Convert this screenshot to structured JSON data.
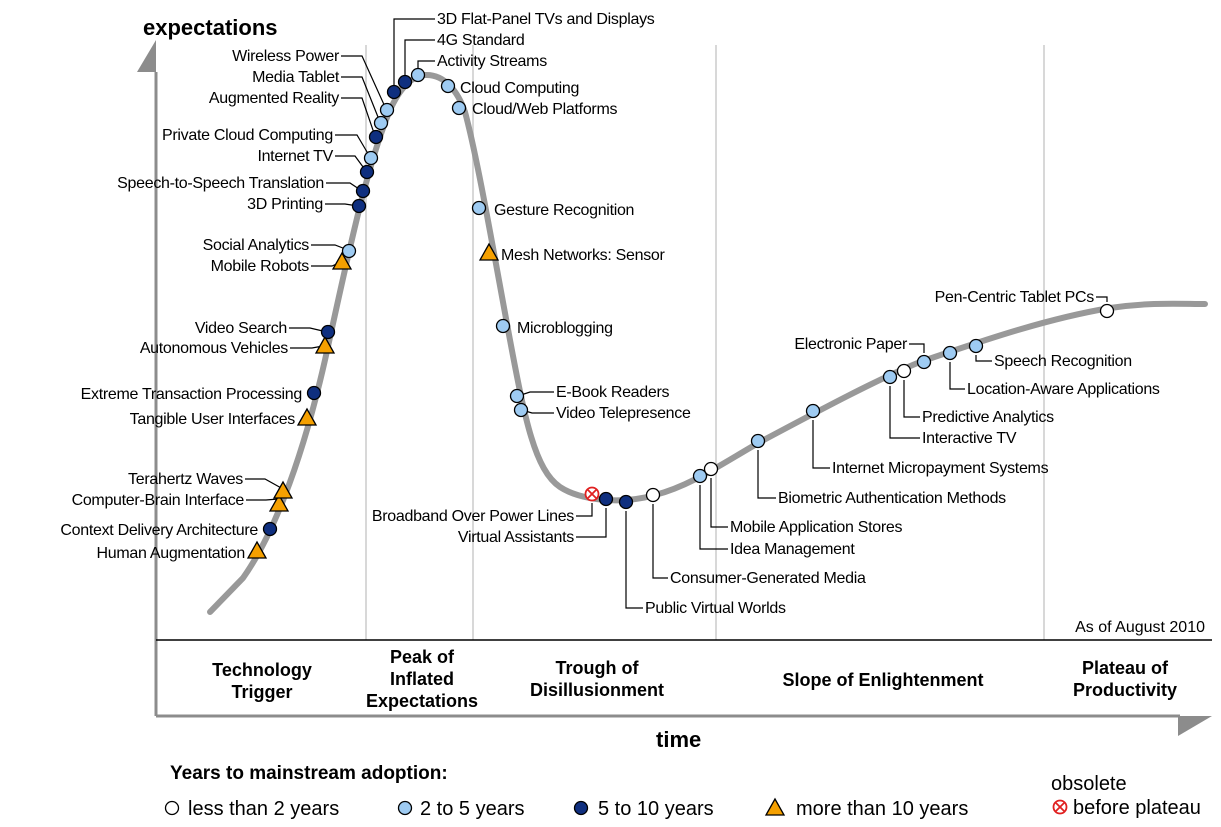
{
  "chart_data": {
    "type": "hype-cycle",
    "ylabel": "expectations",
    "xlabel": "time",
    "as_of": "As of August 2010",
    "colors": {
      "lt2": "#ffffff",
      "2to5": "#9ecbf2",
      "5to10": "#0f2f7f",
      "gt10": "#f5a000",
      "obsolete": "#e02020",
      "curve": "#999999"
    },
    "phases": [
      {
        "lines": [
          "Technology",
          "Trigger"
        ]
      },
      {
        "lines": [
          "Peak of",
          "Inflated",
          "Expectations"
        ]
      },
      {
        "lines": [
          "Trough of",
          "Disillusionment"
        ]
      },
      {
        "lines": [
          "Slope of Enlightenment"
        ]
      },
      {
        "lines": [
          "Plateau of",
          "Productivity"
        ]
      }
    ],
    "legend": {
      "title": "Years to mainstream adoption:",
      "items": [
        {
          "cat": "lt2",
          "label": "less than 2 years"
        },
        {
          "cat": "2to5",
          "label": "2 to 5 years"
        },
        {
          "cat": "5to10",
          "label": "5 to 10 years"
        },
        {
          "cat": "gt10",
          "label": "more than 10 years"
        },
        {
          "cat": "obsolete",
          "label_lines": [
            "obsolete",
            "before plateau"
          ]
        }
      ]
    },
    "technologies": [
      {
        "name": "Human Augmentation",
        "cat": "gt10"
      },
      {
        "name": "Context Delivery Architecture",
        "cat": "5to10"
      },
      {
        "name": "Computer-Brain Interface",
        "cat": "gt10"
      },
      {
        "name": "Terahertz Waves",
        "cat": "gt10"
      },
      {
        "name": "Tangible User Interfaces",
        "cat": "gt10"
      },
      {
        "name": "Extreme Transaction Processing",
        "cat": "5to10"
      },
      {
        "name": "Autonomous Vehicles",
        "cat": "gt10"
      },
      {
        "name": "Video Search",
        "cat": "5to10"
      },
      {
        "name": "Mobile Robots",
        "cat": "gt10"
      },
      {
        "name": "Social Analytics",
        "cat": "2to5"
      },
      {
        "name": "3D Printing",
        "cat": "5to10"
      },
      {
        "name": "Speech-to-Speech Translation",
        "cat": "5to10"
      },
      {
        "name": "Internet TV",
        "cat": "5to10"
      },
      {
        "name": "Private Cloud Computing",
        "cat": "2to5"
      },
      {
        "name": "Augmented Reality",
        "cat": "5to10"
      },
      {
        "name": "Media Tablet",
        "cat": "2to5"
      },
      {
        "name": "Wireless Power",
        "cat": "2to5"
      },
      {
        "name": "3D Flat-Panel TVs and Displays",
        "cat": "5to10"
      },
      {
        "name": "4G Standard",
        "cat": "5to10"
      },
      {
        "name": "Activity Streams",
        "cat": "2to5"
      },
      {
        "name": "Cloud Computing",
        "cat": "2to5"
      },
      {
        "name": "Cloud/Web Platforms",
        "cat": "2to5"
      },
      {
        "name": "Gesture Recognition",
        "cat": "2to5"
      },
      {
        "name": "Mesh Networks: Sensor",
        "cat": "gt10"
      },
      {
        "name": "Microblogging",
        "cat": "2to5"
      },
      {
        "name": "E-Book Readers",
        "cat": "2to5"
      },
      {
        "name": "Video Telepresence",
        "cat": "2to5"
      },
      {
        "name": "Broadband Over Power Lines",
        "cat": "obsolete"
      },
      {
        "name": "Virtual Assistants",
        "cat": "5to10"
      },
      {
        "name": "Public Virtual Worlds",
        "cat": "5to10"
      },
      {
        "name": "Consumer-Generated Media",
        "cat": "lt2"
      },
      {
        "name": "Idea Management",
        "cat": "2to5"
      },
      {
        "name": "Mobile Application Stores",
        "cat": "lt2"
      },
      {
        "name": "Biometric Authentication Methods",
        "cat": "2to5"
      },
      {
        "name": "Internet Micropayment Systems",
        "cat": "2to5"
      },
      {
        "name": "Interactive TV",
        "cat": "2to5"
      },
      {
        "name": "Predictive Analytics",
        "cat": "lt2"
      },
      {
        "name": "Electronic Paper",
        "cat": "2to5"
      },
      {
        "name": "Location-Aware Applications",
        "cat": "2to5"
      },
      {
        "name": "Speech Recognition",
        "cat": "2to5"
      },
      {
        "name": "Pen-Centric Tablet PCs",
        "cat": "lt2"
      }
    ]
  }
}
